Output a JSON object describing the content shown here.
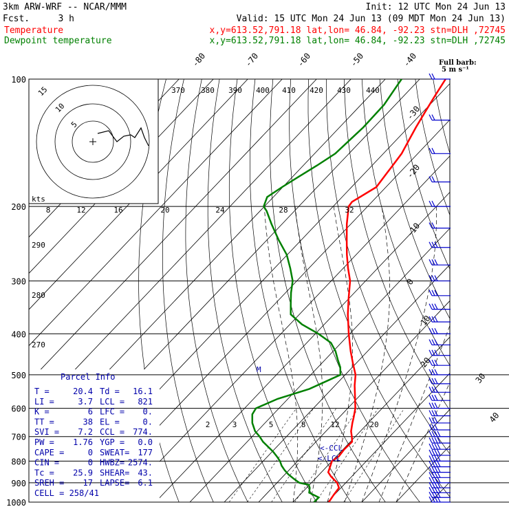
{
  "header": {
    "model": "3km ARW-WRF -- NCAR/MMM",
    "init": "Init: 12 UTC Mon 24 Jun 13",
    "fcst_label": "Fcst.",
    "fcst_value": "3 h",
    "valid": "Valid: 15 UTC Mon 24 Jun 13 (09 MDT Mon 24 Jun 13)",
    "temp_label": "Temperature",
    "dew_label": "Dewpoint temperature",
    "loc_line": "x,y=613.52,791.18   lat,lon= 46.84, -92.23   stn=DLH ,72745"
  },
  "colors": {
    "temperature": "#ff0000",
    "dewpoint": "#008000",
    "text": "#000000",
    "parcel": "#0000aa",
    "barbs": "#0000cc"
  },
  "chart_data": {
    "type": "skew-t",
    "pressure_ticks": [
      "100",
      "200",
      "300",
      "400",
      "500",
      "600",
      "700",
      "800",
      "900",
      "1000"
    ],
    "isotherm_labels": [
      "-80",
      "-70",
      "-60",
      "-50",
      "-40",
      "-30",
      "-20",
      "-10",
      "0",
      "10",
      "20",
      "30",
      "40"
    ],
    "theta_labels": [
      "370",
      "380",
      "390",
      "400",
      "410",
      "420",
      "430",
      "440"
    ],
    "theta_labels_left": [
      "290",
      "280",
      "270"
    ],
    "mixing_ratio_labels": [
      "2",
      "3",
      "5",
      "8",
      "12",
      "20"
    ],
    "temperature_profile": {
      "name": "Temperature",
      "p": [
        1000,
        960,
        925,
        900,
        870,
        850,
        800,
        780,
        750,
        720,
        700,
        680,
        650,
        630,
        600,
        560,
        530,
        500,
        470,
        440,
        400,
        360,
        330,
        300,
        280,
        260,
        240,
        220,
        200,
        195,
        180,
        170,
        160,
        150,
        140,
        130,
        120,
        110,
        100
      ],
      "t": [
        20.4,
        19.8,
        19.4,
        17.5,
        14.0,
        12.0,
        10.0,
        10.7,
        10.3,
        10.5,
        9.0,
        7.3,
        5.4,
        4.2,
        2.2,
        -1.4,
        -4.3,
        -7.0,
        -10.9,
        -14.9,
        -20.3,
        -25.9,
        -30.1,
        -34.5,
        -38.6,
        -42.7,
        -46.8,
        -51.2,
        -55.5,
        -55.8,
        -52.8,
        -53.4,
        -54.0,
        -54.7,
        -56.2,
        -57.8,
        -59.3,
        -60.9,
        -62.5
      ]
    },
    "dewpoint_profile": {
      "name": "Dewpoint temperature",
      "p": [
        1000,
        975,
        950,
        925,
        910,
        900,
        880,
        860,
        840,
        820,
        800,
        780,
        760,
        740,
        720,
        700,
        680,
        650,
        620,
        600,
        570,
        540,
        500,
        480,
        460,
        440,
        420,
        400,
        380,
        360,
        340,
        320,
        300,
        280,
        260,
        240,
        220,
        205,
        200,
        190,
        180,
        170,
        160,
        150,
        130,
        115,
        100
      ],
      "t": [
        16.1,
        16.2,
        12.1,
        10.9,
        9.8,
        6.5,
        3.7,
        1.0,
        -1.3,
        -3.4,
        -5.1,
        -7.3,
        -9.7,
        -12.5,
        -15.4,
        -17.8,
        -20.6,
        -23.7,
        -26.1,
        -26.7,
        -23.0,
        -16.5,
        -11.4,
        -13.5,
        -16.4,
        -19.3,
        -23.0,
        -29.1,
        -36.5,
        -42.5,
        -45.4,
        -48.4,
        -51.2,
        -55.4,
        -60.2,
        -66.6,
        -73.1,
        -78.1,
        -80.2,
        -81.8,
        -80.2,
        -78.2,
        -76.0,
        -74.0,
        -73.1,
        -73.3,
        -75.3
      ]
    },
    "markers": {
      "ccl": "<-CCL",
      "lcl": "<-LCL",
      "el": "M"
    },
    "hodograph": {
      "kts_label": "kts",
      "ring_labels": [
        "5",
        "10",
        "15"
      ],
      "scale_labels": [
        "8",
        "12",
        "16",
        "20",
        "24",
        "28",
        "32"
      ]
    },
    "wind_barb_legend": {
      "title": "Full barb:",
      "value": "5 m s⁻¹"
    }
  },
  "parcel_info": {
    "title": "Parcel Info",
    "rows": [
      [
        "T   =",
        "20.4",
        "Td =",
        "16.1"
      ],
      [
        "LI  =",
        "3.7",
        "LCL =",
        "821"
      ],
      [
        "K   =",
        "6",
        "LFC =",
        "0."
      ],
      [
        "TT  =",
        "38",
        "EL  =",
        "0."
      ],
      [
        "SVI =",
        "7.2",
        "CCL =",
        "774."
      ],
      [
        "PW  =",
        "1.76",
        "YGP =",
        "0.0"
      ],
      [
        "CAPE =",
        "0",
        "SWEAT=",
        "177"
      ],
      [
        "CIN  =",
        "0",
        "HWBZ=",
        "2574."
      ],
      [
        "Tc   =",
        "25.9",
        "SHEAR=",
        "43."
      ],
      [
        "SREH =",
        "17",
        "LAPSE=",
        "6.1"
      ]
    ],
    "cell": "CELL = 258/41"
  }
}
